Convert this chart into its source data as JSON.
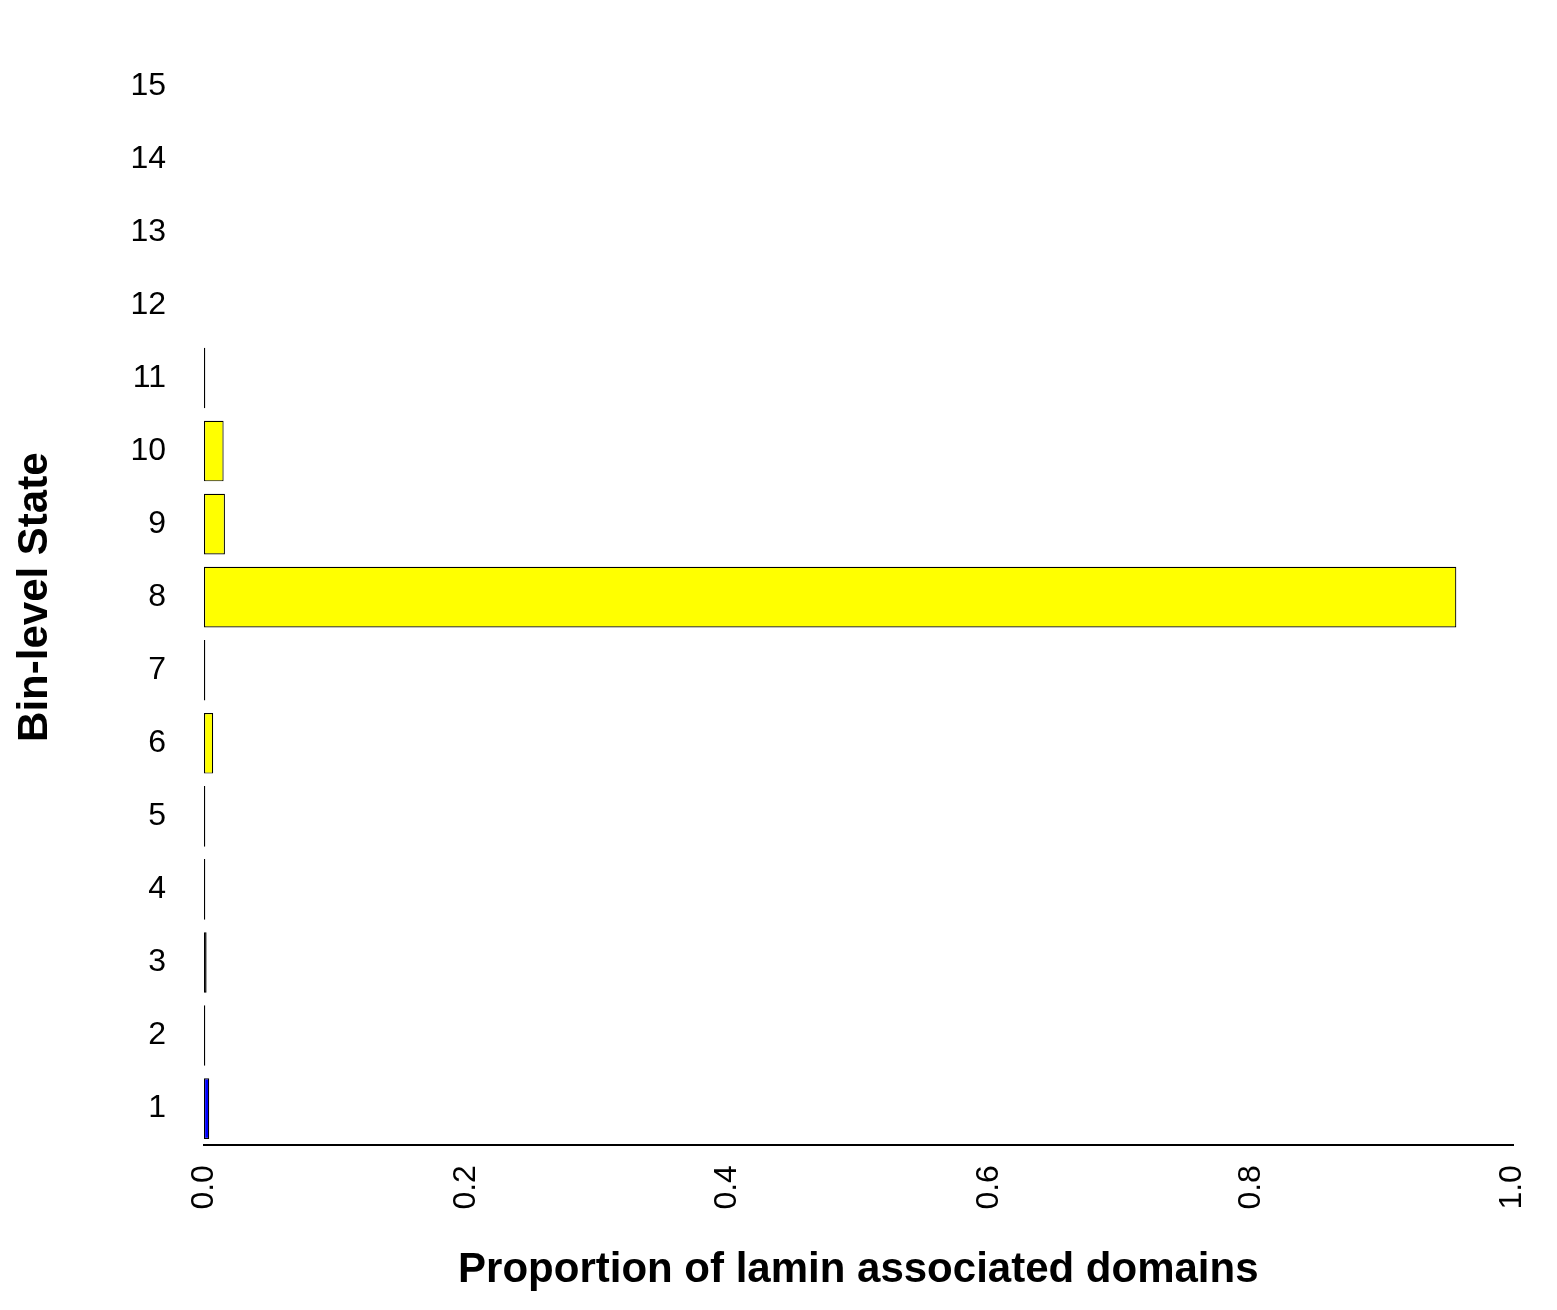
{
  "chart_data": {
    "type": "bar",
    "orientation": "horizontal",
    "xlabel": "Proportion of lamin associated domains",
    "ylabel": "Bin-level State",
    "categories": [
      "15",
      "14",
      "13",
      "12",
      "11",
      "10",
      "9",
      "8",
      "7",
      "6",
      "5",
      "4",
      "3",
      "2",
      "1"
    ],
    "values": [
      0,
      0,
      0,
      0,
      0.001,
      0.015,
      0.016,
      0.957,
      0.001,
      0.007,
      0.001,
      0.001,
      0.002,
      0.001,
      0.004
    ],
    "colors": [
      "#000000",
      "#000000",
      "#000000",
      "#000000",
      "#000000",
      "#ffff00",
      "#ffff00",
      "#ffff00",
      "#000000",
      "#ffff00",
      "#000000",
      "#000000",
      "#000000",
      "#000000",
      "#0000ff"
    ],
    "xlim": [
      0,
      1
    ],
    "xticks": [
      {
        "value": 0,
        "label": "0.0"
      },
      {
        "value": 0.2,
        "label": "0.2"
      },
      {
        "value": 0.4,
        "label": "0.4"
      },
      {
        "value": 0.6,
        "label": "0.6"
      },
      {
        "value": 0.8,
        "label": "0.8"
      },
      {
        "value": 1,
        "label": "1.0"
      }
    ],
    "grid": false,
    "legend": false
  }
}
